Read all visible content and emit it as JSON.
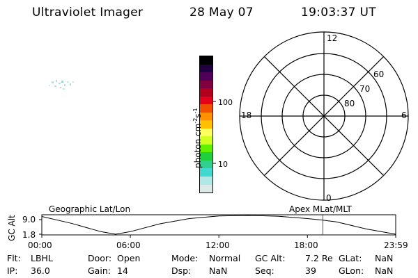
{
  "header": {
    "title": "Ultraviolet Imager",
    "date": "28 May 07",
    "time": "19:03:37 UT"
  },
  "colorbar": {
    "label": "photon cm",
    "exp1": "-2",
    "unit2": "s",
    "exp2": "-1",
    "ticks": [
      "100",
      "10"
    ],
    "colors": [
      "#000000",
      "#200040",
      "#50005a",
      "#800040",
      "#b0001e",
      "#e4001a",
      "#f05000",
      "#ff9000",
      "#ffc000",
      "#ffff60",
      "#d0ff20",
      "#60f000",
      "#20d040",
      "#30d090",
      "#40d8d0",
      "#b0e8e8",
      "#dde8e8"
    ]
  },
  "polar": {
    "mlt_labels": {
      "top": "12",
      "left": "18",
      "right": "6",
      "bottom": "0"
    },
    "lat_labels": [
      "60",
      "70",
      "80"
    ]
  },
  "timeline": {
    "left_label": "Geographic Lat/Lon",
    "right_label": "Apex MLat/MLT",
    "y_title": "GC Alt",
    "y_ticks": [
      "9.0",
      "1.8"
    ],
    "x_ticks": [
      "00:00",
      "06:00",
      "12:00",
      "18:00",
      "23:59"
    ],
    "marker_color": "#ff0000"
  },
  "chart_data": {
    "type": "line",
    "title": "",
    "xlabel": "",
    "ylabel": "GC Alt",
    "ylim": [
      1.8,
      9.0
    ],
    "x": [
      "00:00",
      "02:00",
      "04:00",
      "05:00",
      "06:00",
      "08:00",
      "10:00",
      "12:00",
      "14:00",
      "16:00",
      "18:00",
      "19:03",
      "20:00",
      "22:00",
      "23:59"
    ],
    "series": [
      {
        "values": [
          8.6,
          6.0,
          2.8,
          1.8,
          2.8,
          5.8,
          7.8,
          8.8,
          9.0,
          8.7,
          7.8,
          7.2,
          6.5,
          3.8,
          1.8
        ]
      }
    ],
    "marker_time": "19:03"
  },
  "footer": {
    "rows": [
      [
        {
          "key": "Flt:",
          "val": "LBHL"
        },
        {
          "key": "Door:",
          "val": "Open"
        },
        {
          "key": "Mode:",
          "val": "Normal"
        },
        {
          "key": "GC Alt:",
          "val": "7.2 Re"
        },
        {
          "key": "GLat:",
          "val": "NaN"
        }
      ],
      [
        {
          "key": "IP:",
          "val": "36.0"
        },
        {
          "key": "Gain:",
          "val": "14"
        },
        {
          "key": "Dsp:",
          "val": "NaN"
        },
        {
          "key": "Seq:",
          "val": "39"
        },
        {
          "key": "GLon:",
          "val": "NaN"
        }
      ]
    ]
  }
}
